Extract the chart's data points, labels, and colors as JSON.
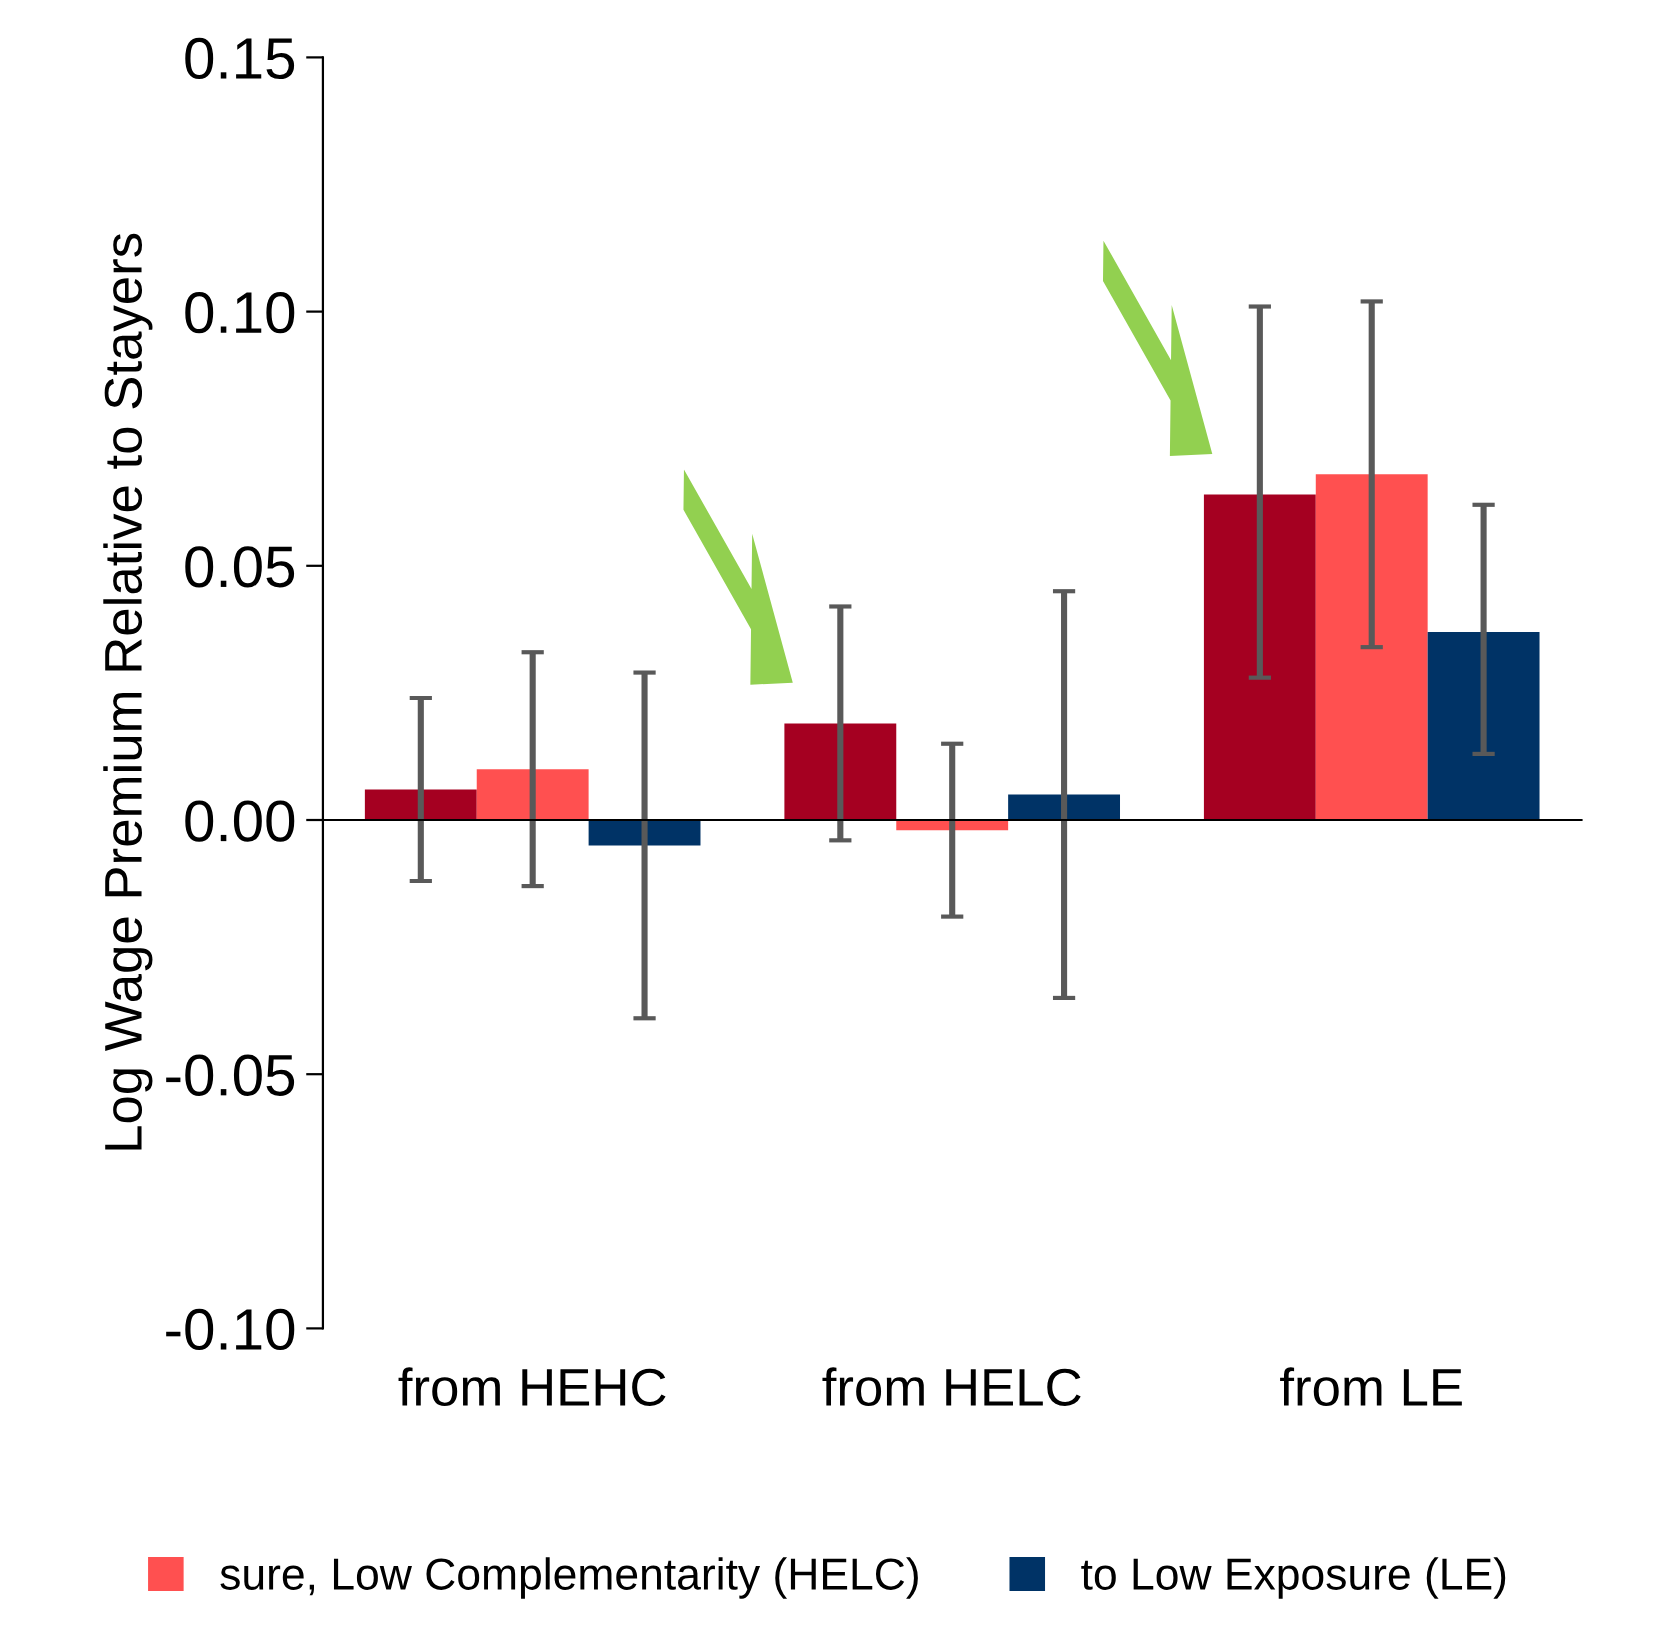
{
  "chart_data": {
    "type": "bar",
    "ylabel": "Log Wage Premium Relative to Stayers",
    "categories": [
      "from HEHC",
      "from HELC",
      "from LE"
    ],
    "series": [
      {
        "color": "#a50021",
        "values": [
          0.006,
          0.019,
          0.064
        ],
        "errors": [
          [
            -0.012,
            0.024
          ],
          [
            -0.004,
            0.042
          ],
          [
            0.028,
            0.101
          ]
        ]
      },
      {
        "name": "sure, Low Complementarity (HELC)",
        "color": "#ff5050",
        "values": [
          0.01,
          -0.002,
          0.068
        ],
        "errors": [
          [
            -0.013,
            0.033
          ],
          [
            -0.019,
            0.015
          ],
          [
            0.034,
            0.102
          ]
        ]
      },
      {
        "name": "to Low Exposure (LE)",
        "color": "#003366",
        "values": [
          -0.005,
          0.005,
          0.037
        ],
        "errors": [
          [
            -0.039,
            0.029
          ],
          [
            -0.035,
            0.045
          ],
          [
            0.013,
            0.062
          ]
        ]
      }
    ],
    "ylim": [
      -0.1,
      0.15
    ],
    "yticks": [
      {
        "value": -0.1,
        "label": "-0.10"
      },
      {
        "value": -0.05,
        "label": "-0.05"
      },
      {
        "value": 0,
        "label": "0.00"
      },
      {
        "value": 0.05,
        "label": "0.05"
      },
      {
        "value": 0.1,
        "label": "0.10"
      },
      {
        "value": 0.15,
        "label": "0.15"
      }
    ],
    "legend": "bottom"
  }
}
